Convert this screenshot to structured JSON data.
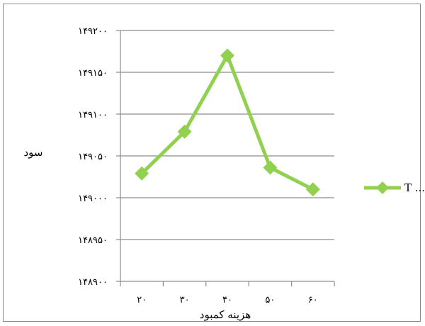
{
  "chart_data": {
    "type": "line",
    "title": "",
    "xlabel": "هزینه کمبود",
    "ylabel": "سود",
    "x": [
      "۲۰",
      "۳۰",
      "۴۰",
      "۵۰",
      "۶۰"
    ],
    "ylim": [
      148900,
      149200
    ],
    "y_ticks": [
      148900,
      148950,
      149000,
      149050,
      149100,
      149150,
      149200
    ],
    "y_tick_labels": [
      "۱۴۸۹۰۰",
      "۱۴۸۹۵۰",
      "۱۴۹۰۰۰",
      "۱۴۹۰۵۰",
      "۱۴۹۱۰۰",
      "۱۴۹۱۵۰",
      "۱۴۹۲۰۰"
    ],
    "grid": true,
    "legend_position": "right",
    "series": [
      {
        "name": "T ...",
        "color": "#92d050",
        "marker": "diamond",
        "values": [
          149029,
          149079,
          149170,
          149036,
          149010
        ]
      }
    ]
  }
}
